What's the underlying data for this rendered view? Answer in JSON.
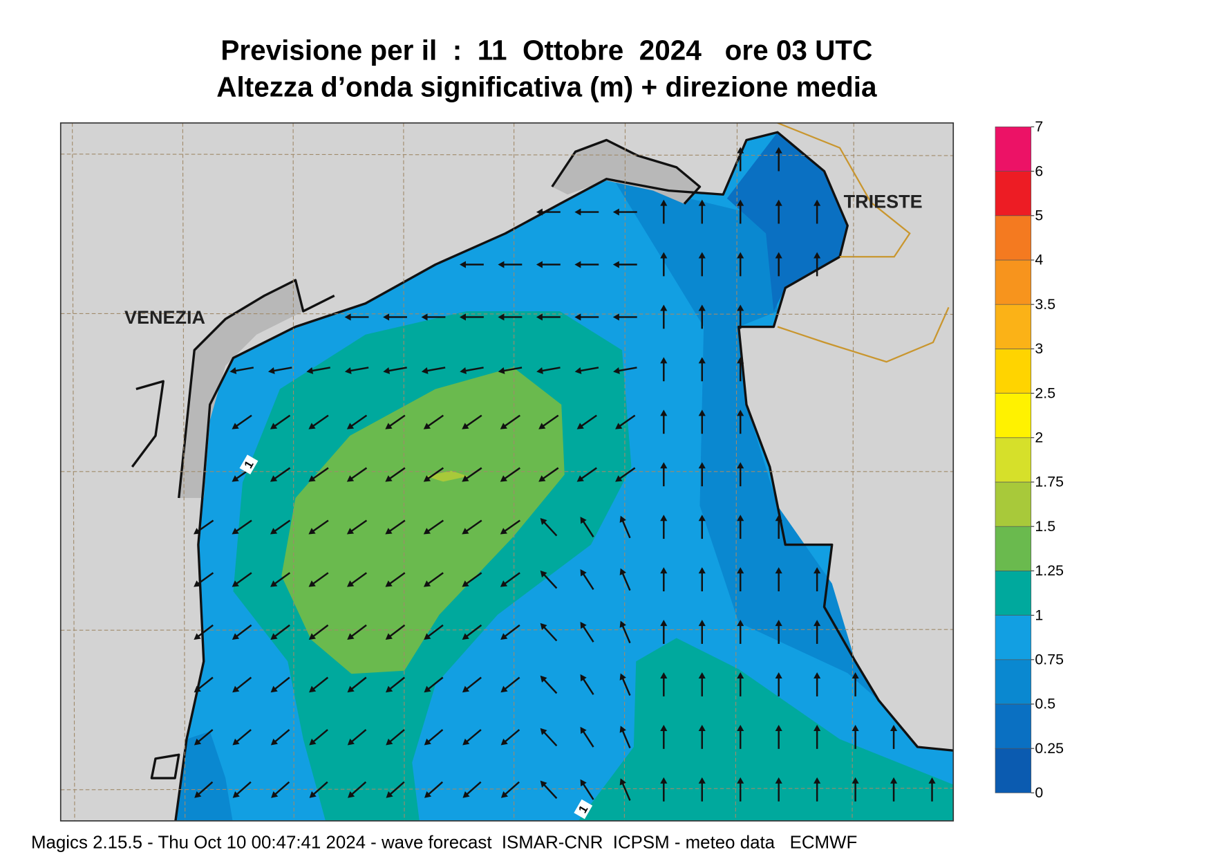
{
  "title": "Previsione per il  :  11  Ottobre  2024   ore 03 UTC",
  "subtitle": "Altezza d’onda significativa (m) + direzione media",
  "map": {
    "places": [
      "VENEZIA",
      "TRIESTE"
    ],
    "contour_labels": [
      "1",
      "1"
    ]
  },
  "colorbar": {
    "levels": [
      0,
      0.25,
      0.5,
      0.75,
      1,
      1.25,
      1.5,
      1.75,
      2,
      2.5,
      3,
      3.5,
      4,
      5,
      6,
      7
    ],
    "colors": [
      "#0b5bb0",
      "#0a70c2",
      "#0a88d0",
      "#129fe2",
      "#00a99d",
      "#6aba4e",
      "#a8c93a",
      "#d6e02a",
      "#fff200",
      "#ffd400",
      "#fbb217",
      "#f7941d",
      "#f47a20",
      "#ed1c24",
      "#ec1266"
    ]
  },
  "footer": "Magics 2.15.5 - Thu Oct 10 00:47:41 2024 - wave forecast  ISMAR-CNR  ICPSM - meteo data   ECMWF"
}
